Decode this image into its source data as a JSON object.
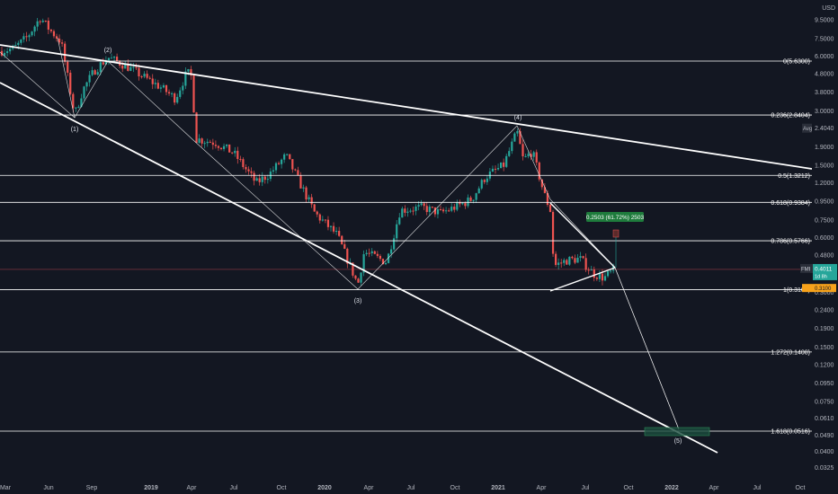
{
  "chart_data": {
    "type": "candlestick",
    "currency": "USD",
    "y_scale": "log",
    "ylim": [
      0.028,
      13.0
    ],
    "x_ticks": [
      "Mar",
      "Jun",
      "Sep",
      "2019",
      "Apr",
      "Jul",
      "Oct",
      "2020",
      "Apr",
      "Jul",
      "Oct",
      "2021",
      "Apr",
      "Jul",
      "Oct",
      "2022",
      "Apr",
      "Jul",
      "Oct"
    ],
    "y_ticks": [
      "12.0000",
      "9.5000",
      "7.5000",
      "6.0000",
      "4.8000",
      "3.8000",
      "3.0000",
      "2.4040",
      "1.9000",
      "1.5000",
      "1.2000",
      "0.9500",
      "0.7500",
      "0.6000",
      "0.4800",
      "0.3800",
      "0.3000",
      "0.2400",
      "0.1900",
      "0.1500",
      "0.1200",
      "0.0950",
      "0.0750",
      "0.0610",
      "0.0490",
      "0.0400",
      "0.0325"
    ],
    "fib_levels": [
      {
        "label": "0(5.6300)",
        "value": 5.63
      },
      {
        "label": "0.236(2.8404)",
        "value": 2.8404
      },
      {
        "label": "0.5(1.3212)",
        "value": 1.3212
      },
      {
        "label": "0.618(0.9384)",
        "value": 0.9384
      },
      {
        "label": "0.786(0.5766)",
        "value": 0.5766
      },
      {
        "label": "1(0.3100)",
        "value": 0.31
      },
      {
        "label": "1.272(0.1408)",
        "value": 0.1408
      },
      {
        "label": "1.618(0.0516)",
        "value": 0.0516
      }
    ],
    "wave_labels": [
      {
        "label": "(1)",
        "value": 2.8
      },
      {
        "label": "(2)",
        "value": 5.95
      },
      {
        "label": "(3)",
        "value": 0.31
      },
      {
        "label": "(4)",
        "value": 2.57
      },
      {
        "label": "(5)",
        "value": 0.05
      }
    ],
    "price_labels": {
      "avg_label": "Avg",
      "avg_value": "2.4040",
      "symbol": "FMI",
      "last_price": "0.4011",
      "countdown": "1d 8h",
      "orange_value": "0.3100"
    },
    "measure_label": "0.2503 (61.72%) 2503",
    "colors": {
      "background": "#131722",
      "up": "#26a69a",
      "down": "#ef5350",
      "line": "#ffffff",
      "price_line": "#f7525f",
      "measure_box": "#1e7b3c",
      "target_box": "#1b4d3e",
      "orange": "#f7a21b"
    }
  }
}
